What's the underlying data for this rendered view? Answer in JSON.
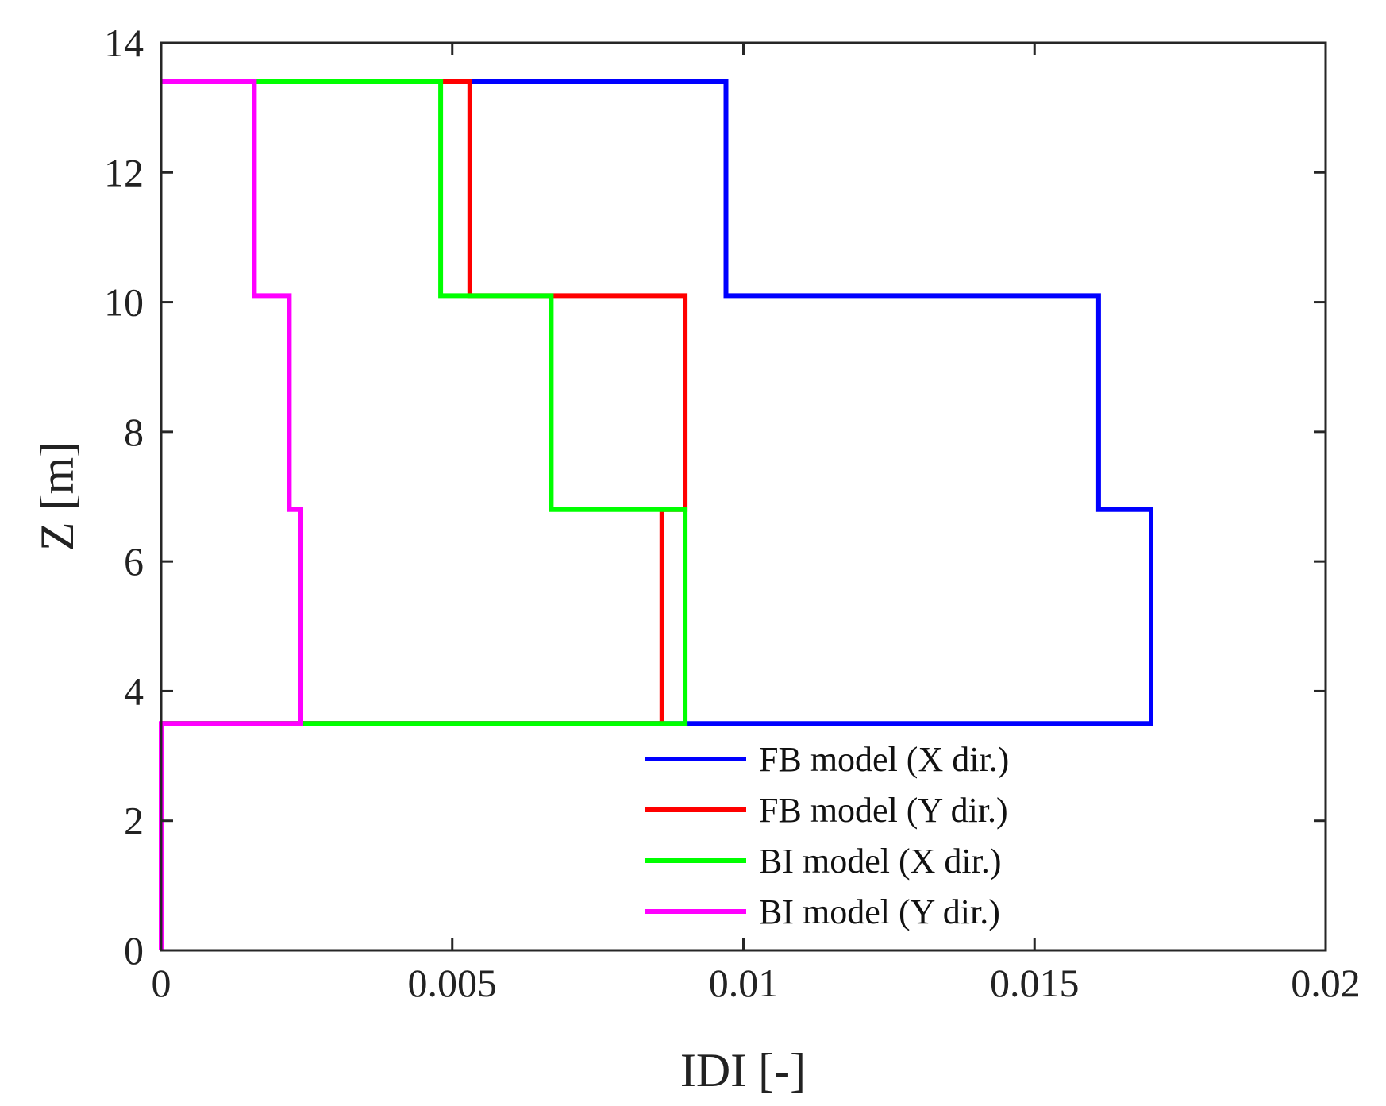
{
  "chart_data": {
    "type": "line",
    "title": "",
    "xlabel": "IDI [-]",
    "ylabel": "Z [m]",
    "xlim": [
      0,
      0.02
    ],
    "ylim": [
      0,
      14
    ],
    "xticks": [
      0,
      0.005,
      0.01,
      0.015,
      0.02
    ],
    "xtick_labels": [
      "0",
      "0.005",
      "0.01",
      "0.015",
      "0.02"
    ],
    "yticks": [
      0,
      2,
      4,
      6,
      8,
      10,
      12,
      14
    ],
    "ytick_labels": [
      "0",
      "2",
      "4",
      "6",
      "8",
      "10",
      "12",
      "14"
    ],
    "grid": false,
    "legend_position": "lower-right",
    "series": [
      {
        "name": "FB model (X dir.)",
        "color": "#0000ff",
        "points": [
          [
            0,
            3.5
          ],
          [
            0.017,
            3.5
          ],
          [
            0.017,
            6.8
          ],
          [
            0.0161,
            6.8
          ],
          [
            0.0161,
            10.1
          ],
          [
            0.0097,
            10.1
          ],
          [
            0.0097,
            13.4
          ],
          [
            0,
            13.4
          ]
        ]
      },
      {
        "name": "FB model (Y dir.)",
        "color": "#ff0000",
        "points": [
          [
            0,
            3.5
          ],
          [
            0.0086,
            3.5
          ],
          [
            0.0086,
            6.8
          ],
          [
            0.009,
            6.8
          ],
          [
            0.009,
            10.1
          ],
          [
            0.0053,
            10.1
          ],
          [
            0.0053,
            13.4
          ],
          [
            0,
            13.4
          ]
        ]
      },
      {
        "name": "BI model (X dir.)",
        "color": "#00ff00",
        "points": [
          [
            0,
            3.5
          ],
          [
            0.009,
            3.5
          ],
          [
            0.009,
            6.8
          ],
          [
            0.0067,
            6.8
          ],
          [
            0.0067,
            10.1
          ],
          [
            0.0048,
            10.1
          ],
          [
            0.0048,
            13.4
          ],
          [
            0,
            13.4
          ]
        ]
      },
      {
        "name": "BI model (Y dir.)",
        "color": "#ff00ff",
        "points": [
          [
            0,
            0
          ],
          [
            0,
            3.5
          ],
          [
            0.0024,
            3.5
          ],
          [
            0.0024,
            6.8
          ],
          [
            0.0022,
            6.8
          ],
          [
            0.0022,
            10.1
          ],
          [
            0.0016,
            10.1
          ],
          [
            0.0016,
            13.4
          ],
          [
            0,
            13.4
          ]
        ]
      }
    ]
  }
}
